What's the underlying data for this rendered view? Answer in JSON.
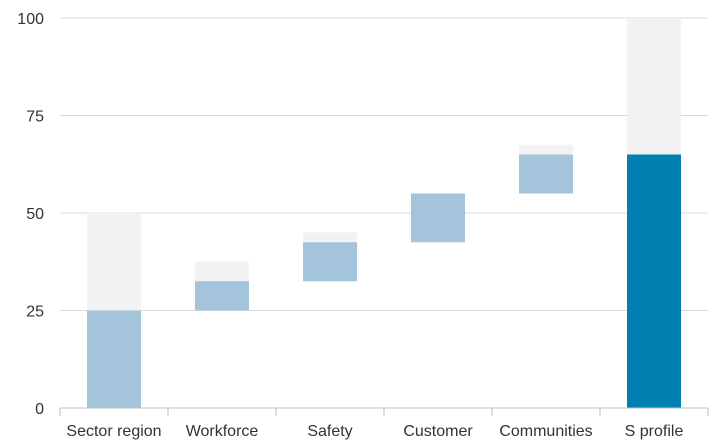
{
  "chart_data": {
    "type": "bar",
    "subtype": "waterfall",
    "title": "",
    "xlabel": "",
    "ylabel": "",
    "ylim": [
      0,
      100
    ],
    "yticks": [
      0,
      25,
      50,
      75,
      100
    ],
    "grid": true,
    "legend": "none",
    "categories": [
      "Sector region",
      "Workforce",
      "Safety",
      "Customer",
      "Communities",
      "S profile"
    ],
    "bars": [
      {
        "category": "Sector region",
        "base": 0,
        "top": 25,
        "potential_top": 50,
        "kind": "start"
      },
      {
        "category": "Workforce",
        "base": 25,
        "top": 32.5,
        "potential_top": 37.5,
        "kind": "step"
      },
      {
        "category": "Safety",
        "base": 32.5,
        "top": 42.5,
        "potential_top": 45,
        "kind": "step"
      },
      {
        "category": "Customer",
        "base": 42.5,
        "top": 55,
        "potential_top": 55,
        "kind": "step"
      },
      {
        "category": "Communities",
        "base": 55,
        "top": 65,
        "potential_top": 67.5,
        "kind": "step"
      },
      {
        "category": "S profile",
        "base": 0,
        "top": 65,
        "potential_top": 100,
        "kind": "total"
      }
    ],
    "colors": {
      "actual": "#a3c4da",
      "potential": "#f2f2f2",
      "total": "#0080b1",
      "grid": "#d9d9d9",
      "axis": "#bfbfbf"
    }
  }
}
